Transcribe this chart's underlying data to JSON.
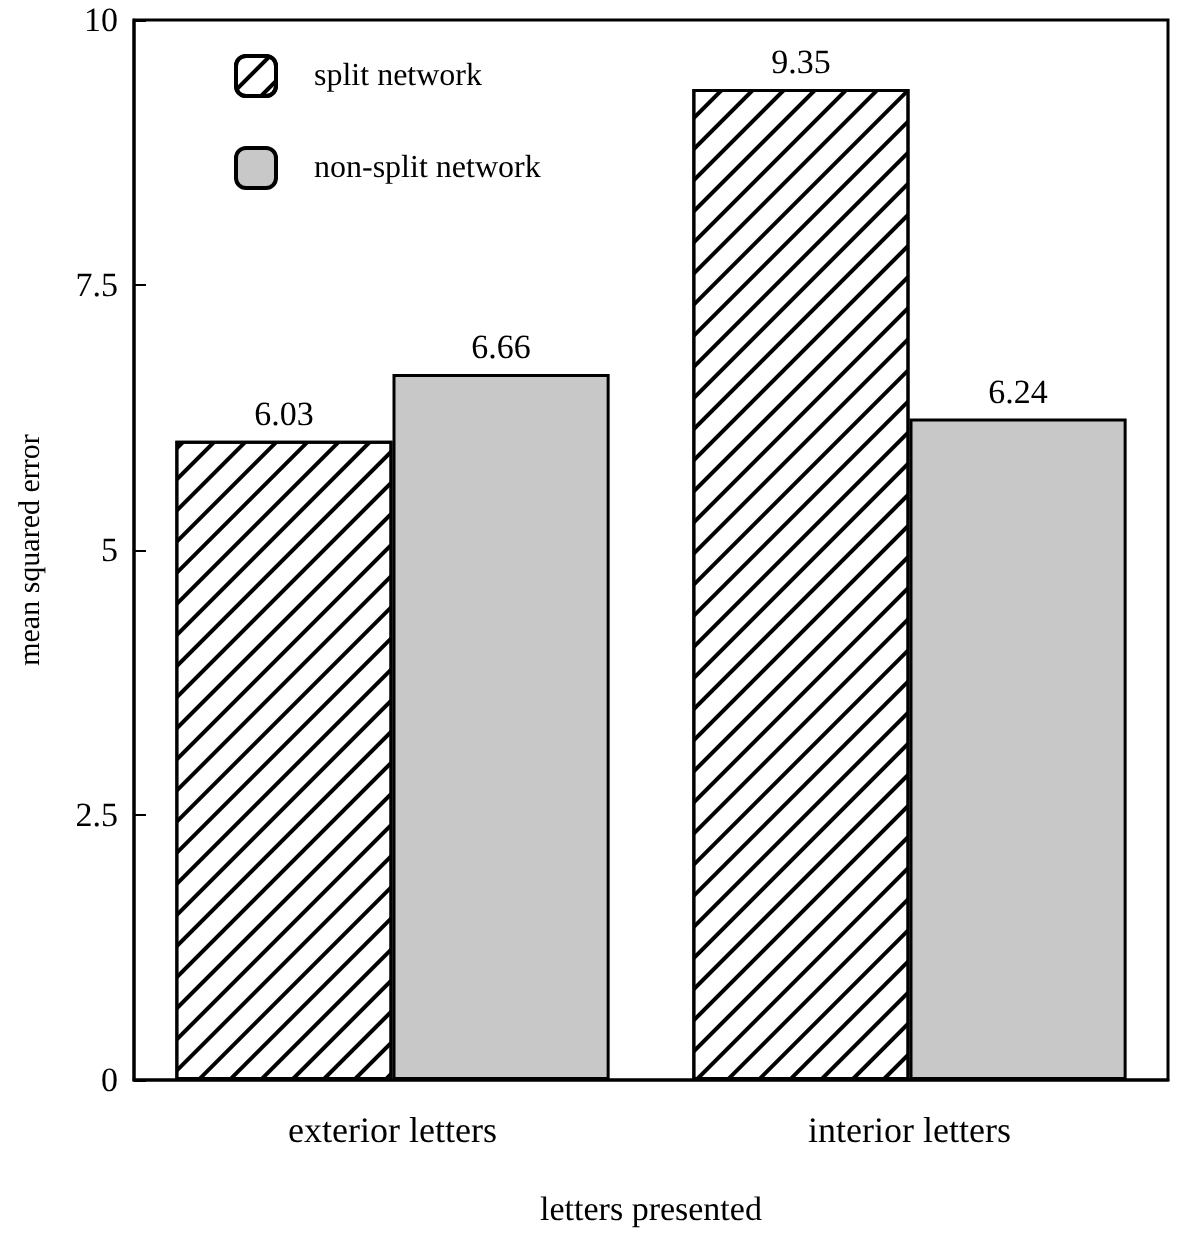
{
  "chart_data": {
    "type": "bar",
    "xlabel": "letters presented",
    "ylabel": "mean squared error",
    "categories": [
      "exterior letters",
      "interior letters"
    ],
    "series": [
      {
        "name": "split network",
        "color": "#ffffff",
        "values": [
          6.03,
          9.35
        ]
      },
      {
        "name": "non-split network",
        "color": "#c8c8c8",
        "values": [
          6.66,
          6.24
        ]
      }
    ],
    "ylim": [
      0,
      10
    ],
    "yticks": [
      0,
      2.5,
      5,
      7.5,
      10
    ],
    "grid": false,
    "legend": "top left",
    "data_labels": true
  }
}
